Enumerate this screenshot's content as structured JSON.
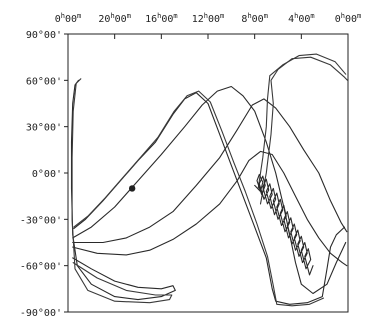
{
  "chart_data": {
    "type": "line",
    "title": "",
    "xlabel": "",
    "ylabel": "",
    "x_axis": {
      "position": "top",
      "direction": "reversed",
      "unit": "hours of right ascension",
      "range": [
        24,
        0
      ],
      "ticks": [
        {
          "value": 24,
          "h": "0",
          "m": "00"
        },
        {
          "value": 20,
          "h": "20",
          "m": "00"
        },
        {
          "value": 16,
          "h": "16",
          "m": "00"
        },
        {
          "value": 12,
          "h": "12",
          "m": "00"
        },
        {
          "value": 8,
          "h": "8",
          "m": "00"
        },
        {
          "value": 4,
          "h": "4",
          "m": "00"
        },
        {
          "value": 0,
          "h": "0",
          "m": "00"
        }
      ]
    },
    "y_axis": {
      "unit": "degrees of declination",
      "range": [
        -90,
        90
      ],
      "ticks": [
        {
          "value": 90,
          "label": "90°00'"
        },
        {
          "value": 60,
          "label": "60°00'"
        },
        {
          "value": 30,
          "label": "30°00'"
        },
        {
          "value": 0,
          "label": "0°00'"
        },
        {
          "value": -30,
          "label": "-30°00'"
        },
        {
          "value": -60,
          "label": "-60°00'"
        },
        {
          "value": -90,
          "label": "-90°00'"
        }
      ]
    },
    "grid": false,
    "legend": "none",
    "series": [
      {
        "color": "#2a2a2a",
        "points": [
          [
            23.5,
            -36
          ],
          [
            22.5,
            -30
          ],
          [
            21,
            -18
          ],
          [
            19.5,
            -5
          ],
          [
            18,
            8
          ],
          [
            16.5,
            20
          ],
          [
            15,
            38
          ],
          [
            14,
            48
          ],
          [
            13,
            52
          ],
          [
            12,
            45
          ],
          [
            11,
            25
          ],
          [
            10,
            5
          ],
          [
            9,
            -15
          ],
          [
            8,
            -35
          ],
          [
            7,
            -55
          ],
          [
            6.5,
            -75
          ],
          [
            6.2,
            -83
          ],
          [
            5,
            -85
          ],
          [
            3.5,
            -84
          ],
          [
            2.2,
            -80
          ],
          [
            1.8,
            -62
          ],
          [
            1.5,
            -48
          ],
          [
            1,
            -40
          ],
          [
            0.3,
            -35
          ]
        ]
      },
      {
        "color": "#2a2a2a",
        "points": [
          [
            23.6,
            -42
          ],
          [
            22,
            -35
          ],
          [
            20,
            -22
          ],
          [
            18,
            -5
          ],
          [
            16,
            12
          ],
          [
            14,
            30
          ],
          [
            12.5,
            44
          ],
          [
            11.2,
            53
          ],
          [
            10,
            56
          ],
          [
            9,
            50
          ],
          [
            8,
            40
          ],
          [
            7,
            20
          ],
          [
            6.2,
            0
          ],
          [
            5.5,
            -22
          ],
          [
            5,
            -40
          ],
          [
            4.5,
            -58
          ],
          [
            4,
            -72
          ],
          [
            3,
            -78
          ],
          [
            1.8,
            -72
          ],
          [
            1,
            -58
          ],
          [
            0.2,
            -45
          ]
        ]
      },
      {
        "color": "#2a2a2a",
        "points": [
          [
            23.6,
            -45
          ],
          [
            21,
            -45
          ],
          [
            19,
            -42
          ],
          [
            17,
            -35
          ],
          [
            15,
            -25
          ],
          [
            13,
            -8
          ],
          [
            11,
            10
          ],
          [
            9.5,
            28
          ],
          [
            8.2,
            44
          ],
          [
            7.2,
            48
          ],
          [
            6.2,
            42
          ],
          [
            5,
            30
          ],
          [
            3.8,
            15
          ],
          [
            2.5,
            0
          ],
          [
            1.5,
            -18
          ],
          [
            0.6,
            -32
          ],
          [
            0.1,
            -38
          ]
        ]
      },
      {
        "color": "#2a2a2a",
        "points": [
          [
            23.6,
            -48
          ],
          [
            21.5,
            -52
          ],
          [
            19,
            -53
          ],
          [
            17,
            -50
          ],
          [
            15,
            -43
          ],
          [
            13,
            -33
          ],
          [
            11,
            -20
          ],
          [
            9.5,
            -5
          ],
          [
            8.5,
            8
          ],
          [
            7.5,
            14
          ],
          [
            6.5,
            12
          ],
          [
            5.5,
            0
          ],
          [
            4.5,
            -15
          ],
          [
            3.5,
            -30
          ],
          [
            2.5,
            -42
          ],
          [
            1.5,
            -52
          ],
          [
            0.5,
            -58
          ],
          [
            0.1,
            -60
          ]
        ]
      },
      {
        "color": "#2a2a2a",
        "points": [
          [
            23.6,
            -55
          ],
          [
            22,
            -62
          ],
          [
            20,
            -70
          ],
          [
            18,
            -74
          ],
          [
            16,
            -75
          ],
          [
            15,
            -73
          ],
          [
            14.8,
            -76
          ],
          [
            16,
            -80
          ],
          [
            18,
            -82
          ],
          [
            20,
            -80
          ],
          [
            22,
            -72
          ],
          [
            23.2,
            -60
          ],
          [
            23.6,
            -40
          ],
          [
            23.7,
            -10
          ],
          [
            23.7,
            20
          ],
          [
            23.6,
            45
          ],
          [
            23.4,
            57
          ],
          [
            23.1,
            60
          ]
        ]
      },
      {
        "color": "#3a3a3a",
        "points": [
          [
            23.55,
            -58
          ],
          [
            21.5,
            -68
          ],
          [
            19,
            -76
          ],
          [
            16.5,
            -79
          ],
          [
            15.1,
            -79
          ],
          [
            15.3,
            -82
          ],
          [
            17,
            -84
          ],
          [
            20,
            -83
          ],
          [
            22.3,
            -76
          ],
          [
            23.4,
            -62
          ],
          [
            23.65,
            -30
          ],
          [
            23.65,
            10
          ],
          [
            23.55,
            40
          ],
          [
            23.3,
            58
          ],
          [
            22.9,
            61
          ]
        ]
      },
      {
        "color": "#3a3a3a",
        "points": [
          [
            23.5,
            -35
          ],
          [
            22.3,
            -28
          ],
          [
            20.8,
            -16
          ],
          [
            19.3,
            -3
          ],
          [
            17.8,
            10
          ],
          [
            16.3,
            23
          ],
          [
            14.9,
            40
          ],
          [
            13.8,
            50
          ],
          [
            12.8,
            53
          ],
          [
            11.8,
            46
          ],
          [
            10.8,
            27
          ],
          [
            9.8,
            7
          ],
          [
            8.8,
            -12
          ],
          [
            7.8,
            -33
          ],
          [
            6.9,
            -54
          ],
          [
            6.4,
            -73
          ],
          [
            6.1,
            -85
          ],
          [
            4.8,
            -86
          ],
          [
            3.3,
            -85
          ],
          [
            2.1,
            -81
          ]
        ]
      },
      {
        "color": "#3a3a3a",
        "points": [
          [
            7.5,
            -20
          ],
          [
            7,
            0
          ],
          [
            6.6,
            25
          ],
          [
            6.4,
            45
          ],
          [
            6.6,
            60
          ],
          [
            6,
            67
          ],
          [
            4.8,
            74
          ],
          [
            3.2,
            75
          ],
          [
            1.5,
            70
          ],
          [
            0.3,
            62
          ],
          [
            0.05,
            60
          ]
        ]
      },
      {
        "color": "#3a3a3a",
        "points": [
          [
            7.7,
            -10
          ],
          [
            7.3,
            10
          ],
          [
            7,
            30
          ],
          [
            6.9,
            48
          ],
          [
            6.7,
            63
          ],
          [
            5.6,
            70
          ],
          [
            4.2,
            76
          ],
          [
            2.7,
            77
          ],
          [
            1.1,
            72
          ],
          [
            0.2,
            64
          ]
        ]
      },
      {
        "color": "#2a2a2a",
        "points": [
          [
            8,
            -8
          ],
          [
            7.5,
            -12
          ],
          [
            7.3,
            -6
          ],
          [
            7.6,
            -1
          ],
          [
            7.8,
            -5
          ],
          [
            7.4,
            -14
          ],
          [
            7.1,
            -8
          ],
          [
            7.3,
            -2
          ],
          [
            7.6,
            -7
          ],
          [
            7.2,
            -17
          ],
          [
            6.8,
            -11
          ],
          [
            7,
            -4
          ],
          [
            7.3,
            -9
          ],
          [
            6.9,
            -20
          ],
          [
            6.5,
            -14
          ],
          [
            6.7,
            -7
          ],
          [
            7,
            -12
          ],
          [
            6.6,
            -23
          ],
          [
            6.2,
            -17
          ],
          [
            6.4,
            -10
          ],
          [
            6.7,
            -15
          ],
          [
            6.3,
            -27
          ],
          [
            5.9,
            -20
          ],
          [
            6.1,
            -13
          ],
          [
            6.4,
            -18
          ],
          [
            6,
            -30
          ],
          [
            5.6,
            -24
          ],
          [
            5.8,
            -17
          ],
          [
            6.1,
            -22
          ],
          [
            5.7,
            -34
          ],
          [
            5.3,
            -28
          ],
          [
            5.5,
            -21
          ],
          [
            5.8,
            -26
          ],
          [
            5.4,
            -38
          ],
          [
            5,
            -32
          ],
          [
            5.2,
            -25
          ],
          [
            5.5,
            -30
          ],
          [
            5.1,
            -42
          ],
          [
            4.7,
            -36
          ],
          [
            4.9,
            -29
          ],
          [
            5.2,
            -34
          ],
          [
            4.8,
            -46
          ],
          [
            4.4,
            -40
          ],
          [
            4.6,
            -33
          ],
          [
            4.9,
            -38
          ],
          [
            4.5,
            -50
          ],
          [
            4.1,
            -44
          ],
          [
            4.3,
            -37
          ],
          [
            4.6,
            -42
          ],
          [
            4.2,
            -54
          ],
          [
            3.8,
            -48
          ],
          [
            4,
            -41
          ],
          [
            4.3,
            -46
          ],
          [
            3.9,
            -58
          ],
          [
            3.5,
            -52
          ],
          [
            3.7,
            -45
          ],
          [
            4,
            -50
          ],
          [
            3.6,
            -62
          ],
          [
            3.2,
            -56
          ],
          [
            3.4,
            -49
          ],
          [
            3.7,
            -54
          ],
          [
            3.3,
            -66
          ],
          [
            3,
            -60
          ]
        ]
      }
    ],
    "markers": [
      {
        "x": 18.5,
        "y": -10
      }
    ]
  }
}
